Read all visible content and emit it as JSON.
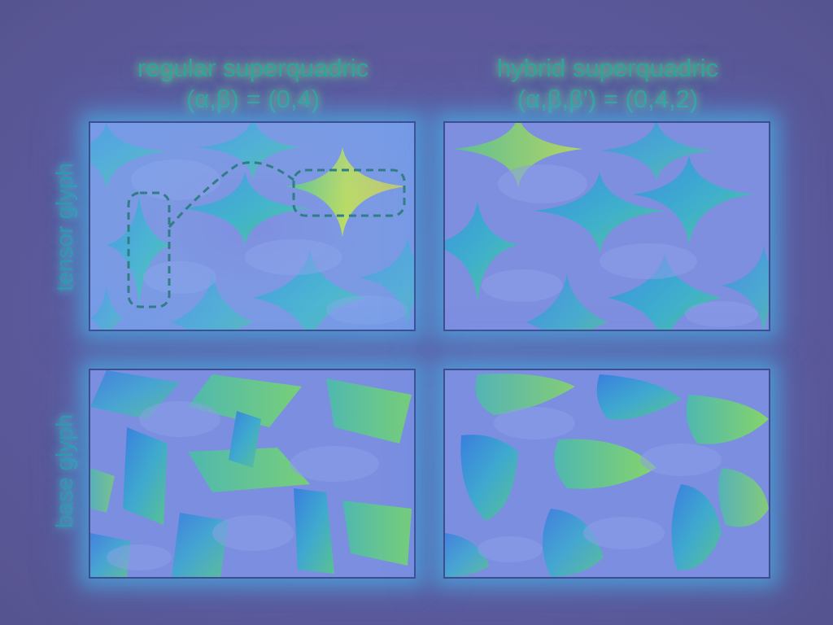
{
  "columns": [
    {
      "title_line1": "regular superquadric",
      "title_line2": "(α,β) = (0,4)"
    },
    {
      "title_line1": "hybrid superquadric",
      "title_line2": "(α,β,β') = (0,4,2)"
    }
  ],
  "rows": [
    {
      "label": "tensor glyph"
    },
    {
      "label": "base glyph"
    }
  ],
  "colors": {
    "background": "#5d5a9c",
    "panel_fill": "#7b8fe0",
    "glyph_blue": "#3c8ee0",
    "glyph_green": "#55c28f",
    "highlight_yellow": "#c8e04a",
    "annotation_dash": "#2f7d86",
    "panel_border": "#3f4d8f"
  }
}
